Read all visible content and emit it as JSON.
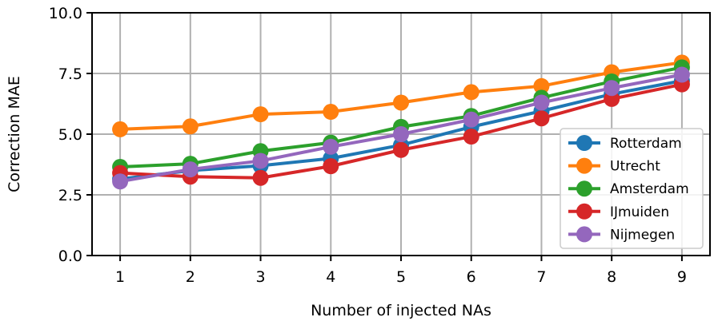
{
  "chart_data": {
    "type": "line",
    "title": "",
    "xlabel": "Number of injected NAs",
    "ylabel": "Correction MAE",
    "x": [
      1,
      2,
      3,
      4,
      5,
      6,
      7,
      8,
      9
    ],
    "x_tick_labels": [
      "1",
      "2",
      "3",
      "4",
      "5",
      "6",
      "7",
      "8",
      "9"
    ],
    "xlim": [
      0.6,
      9.4
    ],
    "ylim": [
      0.0,
      10.0
    ],
    "y_ticks": [
      0.0,
      2.5,
      5.0,
      7.5,
      10.0
    ],
    "y_tick_labels": [
      "0.0",
      "2.5",
      "5.0",
      "7.5",
      "10.0"
    ],
    "grid": true,
    "legend_position": "lower-right",
    "series": [
      {
        "name": "Rotterdam",
        "color": "#1f77b4",
        "values": [
          3.15,
          3.5,
          3.7,
          4.0,
          4.55,
          5.3,
          5.95,
          6.65,
          7.2
        ]
      },
      {
        "name": "Utrecht",
        "color": "#ff7f0e",
        "values": [
          5.2,
          5.32,
          5.82,
          5.92,
          6.3,
          6.73,
          6.98,
          7.55,
          7.95
        ]
      },
      {
        "name": "Amsterdam",
        "color": "#2ca02c",
        "values": [
          3.65,
          3.78,
          4.3,
          4.65,
          5.3,
          5.75,
          6.5,
          7.17,
          7.75
        ]
      },
      {
        "name": "IJmuiden",
        "color": "#d62728",
        "values": [
          3.4,
          3.25,
          3.2,
          3.68,
          4.35,
          4.9,
          5.65,
          6.45,
          7.05
        ]
      },
      {
        "name": "Nijmegen",
        "color": "#9467bd",
        "values": [
          3.05,
          3.55,
          3.9,
          4.48,
          5.0,
          5.6,
          6.3,
          6.9,
          7.45
        ]
      }
    ]
  }
}
